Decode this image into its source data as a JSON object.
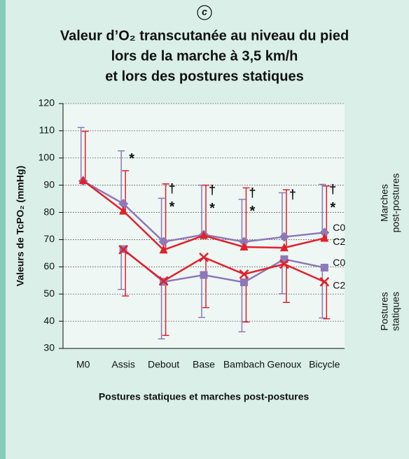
{
  "chart_data": {
    "type": "line",
    "figure_label": "c",
    "title": [
      "Valeur d’O₂ transcutanée au niveau du pied",
      "lors de la marche à 3,5 km/h",
      "et lors des postures statiques"
    ],
    "y_label": "Valeurs de TcPO₂ (mmHg)",
    "x_label": "Postures statiques et marches post-postures",
    "categories": [
      "M0",
      "Assis",
      "Debout",
      "Base",
      "Bambach",
      "Genoux",
      "Bicycle"
    ],
    "ylim": [
      30,
      120
    ],
    "yticks": [
      30,
      40,
      50,
      60,
      70,
      80,
      90,
      100,
      110,
      120
    ],
    "grid": true,
    "groups": [
      [
        "Marches",
        "post-postures"
      ],
      [
        "Postures",
        "statiques"
      ]
    ],
    "series": [
      {
        "name": "C0",
        "color": "#8d78b8",
        "marker": "diamond",
        "values": [
          91.5,
          83.2,
          69.2,
          71.8,
          69.2,
          71.0,
          72.6
        ],
        "upper": [
          111.2,
          102.6,
          85.2,
          90.0,
          84.8,
          87.2,
          90.3
        ]
      },
      {
        "name": "C2",
        "color": "#e2202a",
        "marker": "triangle",
        "values": [
          91.7,
          80.5,
          66.2,
          71.5,
          67.3,
          67.0,
          70.5
        ],
        "upper": [
          109.8,
          95.3,
          90.5,
          90.0,
          89.0,
          88.3,
          89.7
        ]
      },
      {
        "name": "C0",
        "color": "#8d78b8",
        "marker": "square",
        "values": [
          null,
          66.5,
          54.5,
          57.0,
          54.3,
          62.8,
          59.7
        ],
        "lower": [
          null,
          51.7,
          33.5,
          41.4,
          36.1,
          50.1,
          41.2
        ]
      },
      {
        "name": "C2",
        "color": "#e2202a",
        "marker": "cross",
        "values": [
          null,
          66.3,
          54.8,
          63.5,
          57.3,
          61.0,
          54.5
        ],
        "lower": [
          null,
          49.3,
          34.8,
          45.0,
          39.7,
          46.9,
          40.9
        ]
      }
    ],
    "symbols_top": [
      null,
      null,
      "†",
      "†",
      "†",
      "†",
      "†"
    ],
    "symbols_bottom": [
      null,
      "*",
      "*",
      "*",
      "*",
      null,
      "*"
    ]
  }
}
